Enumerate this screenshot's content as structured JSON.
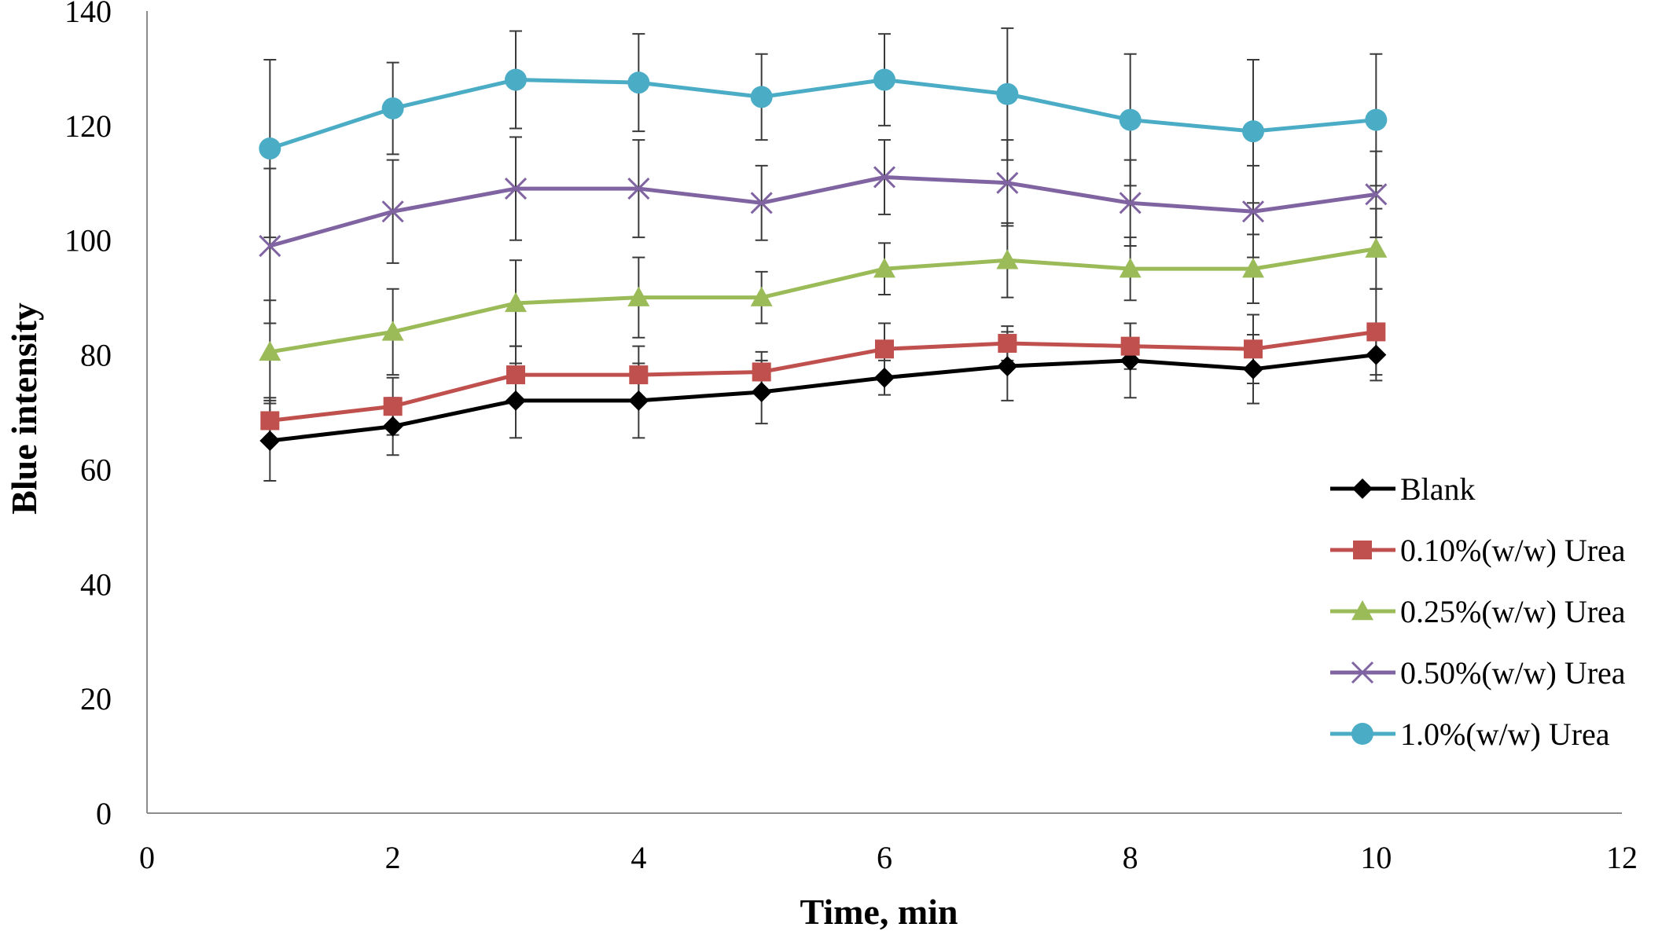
{
  "chart_data": {
    "type": "line",
    "xlabel": "Time, min",
    "ylabel": "Blue intensity",
    "xlim": [
      0,
      12
    ],
    "ylim": [
      0,
      140
    ],
    "x_ticks": [
      0,
      2,
      4,
      6,
      8,
      10,
      12
    ],
    "y_ticks": [
      0,
      20,
      40,
      60,
      80,
      100,
      120,
      140
    ],
    "grid": false,
    "legend_position": "right",
    "x": [
      1,
      2,
      3,
      4,
      5,
      6,
      7,
      8,
      9,
      10
    ],
    "series": [
      {
        "name": "Blank",
        "color": "#000000",
        "marker": "diamond",
        "values": [
          65,
          67.5,
          72,
          72,
          73.5,
          76,
          78,
          79,
          77.5,
          80
        ],
        "errors": [
          7,
          5,
          6.5,
          6.5,
          5.5,
          3,
          6,
          6.5,
          6,
          4.5
        ]
      },
      {
        "name": "0.10%(w/w) Urea",
        "color": "#c0504d",
        "marker": "square",
        "values": [
          68.5,
          71,
          76.5,
          76.5,
          77,
          81,
          82,
          81.5,
          81,
          84
        ],
        "errors": [
          4,
          5,
          5,
          5,
          3.5,
          4.5,
          3,
          4,
          6,
          7.5
        ]
      },
      {
        "name": "0.25%(w/w) Urea",
        "color": "#9bbb59",
        "marker": "triangle",
        "values": [
          80.5,
          84,
          89,
          90,
          90,
          95,
          96.5,
          95,
          95,
          98.5
        ],
        "errors": [
          9,
          7.5,
          7.5,
          7,
          4.5,
          4.5,
          6.5,
          5.5,
          6,
          7
        ]
      },
      {
        "name": "0.50%(w/w) Urea",
        "color": "#8064a2",
        "marker": "x",
        "values": [
          99,
          105,
          109,
          109,
          106.5,
          111,
          110,
          106.5,
          105,
          108
        ],
        "errors": [
          13.5,
          9,
          9,
          8.5,
          6.5,
          6.5,
          7.5,
          7.5,
          8,
          7.5
        ]
      },
      {
        "name": "1.0%(w/w) Urea",
        "color": "#4bacc6",
        "marker": "circle",
        "values": [
          116,
          123,
          128,
          127.5,
          125,
          128,
          125.5,
          121,
          119,
          121
        ],
        "errors": [
          15.5,
          8,
          8.5,
          8.5,
          7.5,
          8,
          11.5,
          11.5,
          12.5,
          11.5
        ]
      }
    ]
  }
}
